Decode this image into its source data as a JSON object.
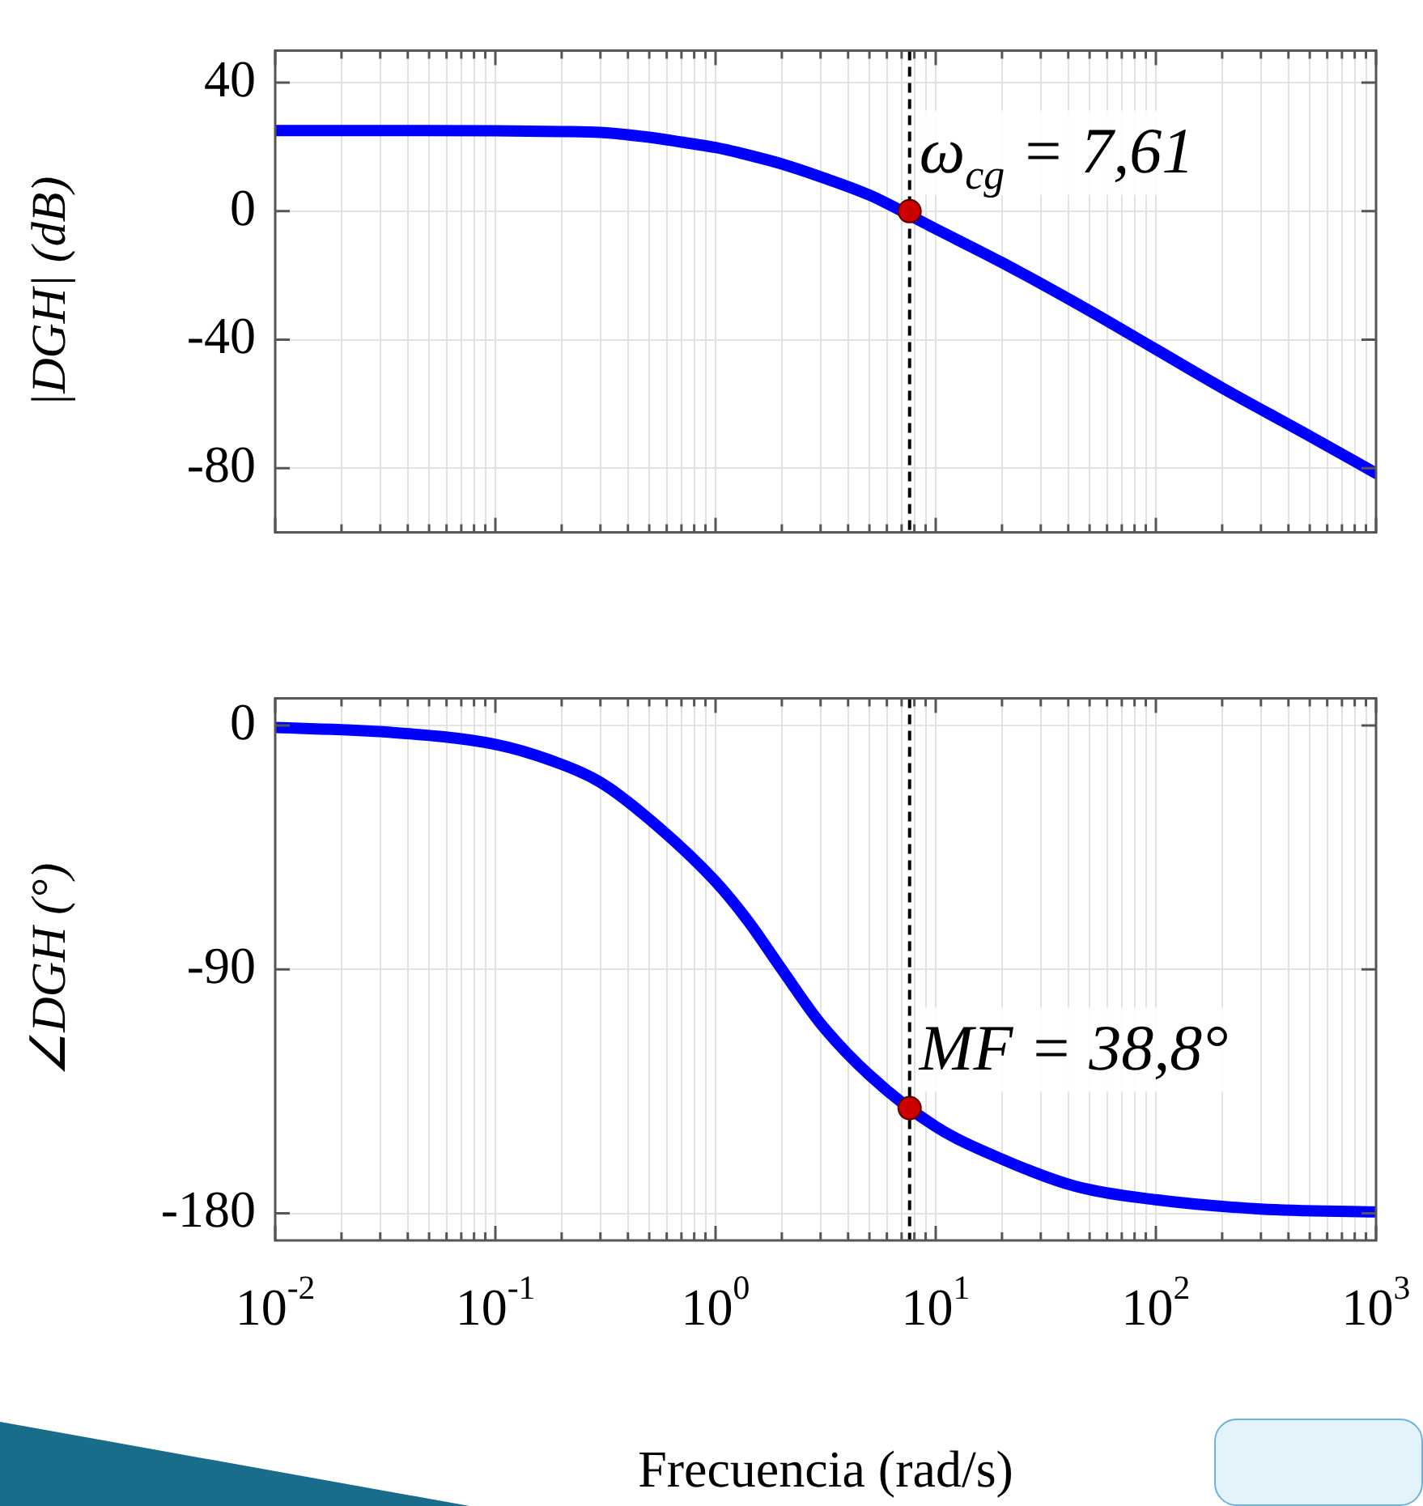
{
  "chart_data": [
    {
      "type": "line",
      "ylabel": "|DGH| (dB)",
      "log": "x",
      "grid": true,
      "tick_labels": "y",
      "line_style": "solid",
      "marker": "none",
      "xlim": [
        0.01,
        1000
      ],
      "ylim": [
        -100,
        50
      ],
      "yticks": [
        -80,
        -40,
        0,
        40
      ],
      "xticks": [
        0.01,
        0.02,
        0.03,
        0.04,
        0.05,
        0.06,
        0.07,
        0.08,
        0.09,
        0.1,
        0.2,
        0.3,
        0.4,
        0.5,
        0.6,
        0.7,
        0.8,
        0.9,
        1,
        2,
        3,
        4,
        5,
        6,
        7,
        8,
        9,
        10,
        20,
        30,
        40,
        50,
        60,
        70,
        80,
        90,
        100,
        200,
        300,
        400,
        500,
        600,
        700,
        800,
        900,
        1000
      ],
      "series": [
        {
          "color": "#0000ff",
          "x": [
            0.01,
            0.03,
            0.1,
            0.2,
            0.3,
            0.5,
            0.7,
            1,
            1.5,
            2,
            3,
            5,
            10,
            20,
            50,
            100,
            200,
            500,
            1000
          ],
          "values": [
            25.1,
            25.1,
            25.0,
            24.8,
            24.5,
            23,
            21.5,
            19.8,
            17,
            14.7,
            10.7,
            5,
            -5.5,
            -16,
            -31,
            -43,
            -55,
            -70,
            -81.6
          ]
        },
        {
          "type": "scatter",
          "marker": "circle",
          "color": "#cc0000",
          "x": [
            7.61
          ],
          "values": [
            0
          ]
        }
      ],
      "ref_lines": [
        {
          "axis": "x",
          "value": 7.61,
          "color": "#000000",
          "line_style": "dashed"
        }
      ],
      "annotations": [
        {
          "text": "ω$_{cg}$ = 7,61",
          "x": 7.61,
          "y": 0
        }
      ]
    },
    {
      "type": "line",
      "ylabel": "∠DGH (°)",
      "xlabel": "Frecuencia (rad/s)",
      "log": "x",
      "grid": true,
      "line_style": "solid",
      "marker": "none",
      "xlim": [
        0.01,
        1000
      ],
      "ylim": [
        -190,
        10
      ],
      "yticks": [
        -180,
        -90,
        0
      ],
      "xticks": [
        {
          "value": 0.01,
          "label": "10$^{-2}$"
        },
        {
          "value": 0.02,
          "label": null
        },
        {
          "value": 0.03,
          "label": null
        },
        {
          "value": 0.04,
          "label": null
        },
        {
          "value": 0.05,
          "label": null
        },
        {
          "value": 0.06,
          "label": null
        },
        {
          "value": 0.07,
          "label": null
        },
        {
          "value": 0.08,
          "label": null
        },
        {
          "value": 0.09,
          "label": null
        },
        {
          "value": 0.1,
          "label": "10$^{-1}$"
        },
        {
          "value": 0.2,
          "label": null
        },
        {
          "value": 0.3,
          "label": null
        },
        {
          "value": 0.4,
          "label": null
        },
        {
          "value": 0.5,
          "label": null
        },
        {
          "value": 0.6,
          "label": null
        },
        {
          "value": 0.7,
          "label": null
        },
        {
          "value": 0.8,
          "label": null
        },
        {
          "value": 0.9,
          "label": null
        },
        {
          "value": 1,
          "label": "10$^{0}$"
        },
        {
          "value": 2,
          "label": null
        },
        {
          "value": 3,
          "label": null
        },
        {
          "value": 4,
          "label": null
        },
        {
          "value": 5,
          "label": null
        },
        {
          "value": 6,
          "label": null
        },
        {
          "value": 7,
          "label": null
        },
        {
          "value": 8,
          "label": null
        },
        {
          "value": 9,
          "label": null
        },
        {
          "value": 10,
          "label": "10$^{1}$"
        },
        {
          "value": 20,
          "label": null
        },
        {
          "value": 30,
          "label": null
        },
        {
          "value": 40,
          "label": null
        },
        {
          "value": 50,
          "label": null
        },
        {
          "value": 60,
          "label": null
        },
        {
          "value": 70,
          "label": null
        },
        {
          "value": 80,
          "label": null
        },
        {
          "value": 90,
          "label": null
        },
        {
          "value": 100,
          "label": "10$^{2}$"
        },
        {
          "value": 200,
          "label": null
        },
        {
          "value": 300,
          "label": null
        },
        {
          "value": 400,
          "label": null
        },
        {
          "value": 500,
          "label": null
        },
        {
          "value": 600,
          "label": null
        },
        {
          "value": 700,
          "label": null
        },
        {
          "value": 800,
          "label": null
        },
        {
          "value": 900,
          "label": null
        },
        {
          "value": 1000,
          "label": "10$^{3}$"
        }
      ],
      "series": [
        {
          "color": "#0000ff",
          "x": [
            0.01,
            0.03,
            0.1,
            0.18,
            0.3,
            0.5,
            1,
            1.4,
            2,
            3,
            5,
            10,
            20,
            43,
            100,
            300,
            1000
          ],
          "values": [
            -0.8,
            -2.3,
            -7,
            -13,
            -21,
            -34.6,
            -57.6,
            -72,
            -90,
            -110,
            -129,
            -148,
            -160,
            -170,
            -175,
            -178.4,
            -179.5
          ]
        },
        {
          "type": "scatter",
          "marker": "circle",
          "color": "#cc0000",
          "x": [
            7.61
          ],
          "values": [
            -141.2
          ]
        }
      ],
      "ref_lines": [
        {
          "axis": "x",
          "value": 7.61,
          "color": "#000000",
          "line_style": "dashed"
        }
      ],
      "annotations": [
        {
          "text": "MF = 38,8°",
          "x": 7.61,
          "y": -141.2
        }
      ]
    }
  ]
}
